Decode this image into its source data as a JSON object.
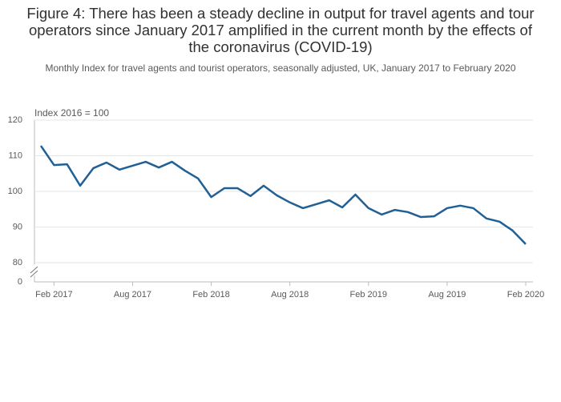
{
  "chart_data": {
    "type": "line",
    "title": "Figure 4: There has been a steady decline in output for travel agents and tour operators since January 2017 amplified in the current month by the effects of the coronavirus (COVID-19)",
    "subtitle": "Monthly Index for travel agents and tourist operators, seasonally adjusted, UK, January 2017 to February 2020",
    "y_annotation": "Index 2016 = 100",
    "categories": [
      null,
      "Feb 2017",
      null,
      null,
      null,
      null,
      null,
      "Aug 2017",
      null,
      null,
      null,
      null,
      null,
      "Feb 2018",
      null,
      null,
      null,
      null,
      null,
      "Aug 2018",
      null,
      null,
      null,
      null,
      null,
      "Feb 2019",
      null,
      null,
      null,
      null,
      null,
      "Aug 2019",
      null,
      null,
      null,
      null,
      null,
      "Feb 2020"
    ],
    "series": [
      {
        "color": "#206095",
        "values": [
          112.8,
          107.4,
          107.6,
          101.6,
          106.5,
          108.1,
          106.1,
          107.2,
          108.3,
          106.7,
          108.3,
          105.8,
          103.6,
          98.4,
          100.9,
          100.9,
          98.7,
          101.6,
          98.9,
          96.9,
          95.3,
          96.4,
          97.5,
          95.5,
          99.1,
          95.3,
          93.5,
          94.8,
          94.2,
          92.8,
          93.0,
          95.3,
          96.0,
          95.3,
          92.4,
          91.5,
          89.0,
          85.2
        ]
      }
    ],
    "ylim": [
      80,
      120
    ],
    "yticks": [
      80,
      90,
      100,
      110,
      120
    ],
    "y_break_tick": 0,
    "grid": true
  }
}
